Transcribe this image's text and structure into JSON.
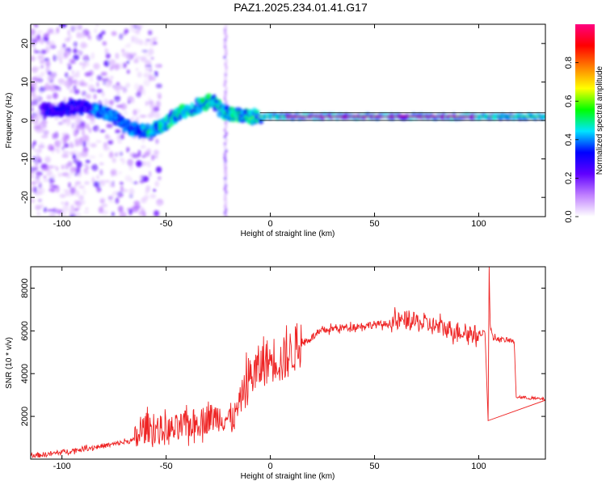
{
  "title": "PAZ1.2025.234.01.41.G17",
  "colors": {
    "snr_line": "#ee2222",
    "axis": "#000000",
    "band": "#000000"
  },
  "chart_data": [
    {
      "type": "heatmap",
      "name": "spectrogram",
      "xlabel": "Height of straight line (km)",
      "ylabel": "Frequency (Hz)",
      "xlim": [
        -115,
        132
      ],
      "ylim": [
        -25,
        25
      ],
      "xticks": [
        -100,
        -50,
        0,
        50,
        100
      ],
      "xtick_labels": [
        "-100",
        "-50",
        "0",
        "50",
        "100"
      ],
      "yticks": [
        -20,
        -10,
        0,
        10,
        20
      ],
      "ytick_labels": [
        "-20",
        "-10",
        "0",
        "10",
        "20"
      ],
      "ridge": {
        "x": [
          -115,
          -100,
          -90,
          -82,
          -75,
          -68,
          -60,
          -52,
          -45,
          -38,
          -32,
          -27,
          -24,
          -20,
          -15,
          -10,
          -5,
          0,
          50,
          100,
          132
        ],
        "freq": [
          2.5,
          3.0,
          3.5,
          2.5,
          0.8,
          -2.0,
          -3.0,
          -1.5,
          1.5,
          3.0,
          4.5,
          5.0,
          3.0,
          1.5,
          1.5,
          1.0,
          1.0,
          1.0,
          1.0,
          1.0,
          1.0
        ]
      },
      "band_lines_hz": [
        0,
        2
      ],
      "band_range_km": [
        -5,
        132
      ],
      "colorbar": {
        "label": "Normalized spectral amplitude",
        "range": [
          0,
          1
        ],
        "ticks": [
          0.0,
          0.2,
          0.4,
          0.6,
          0.8
        ],
        "tick_labels": [
          "0.0",
          "0.2",
          "0.4",
          "0.6",
          "0.8"
        ],
        "stops": [
          "#ffffff",
          "#c080ff",
          "#6000ff",
          "#0000ff",
          "#00e5ff",
          "#00ff00",
          "#ffff00",
          "#ff8000",
          "#ff0000",
          "#ff0080"
        ]
      }
    },
    {
      "type": "line",
      "name": "snr",
      "xlabel": "Height of straight line (km)",
      "ylabel": "SNR (10 * v/v)",
      "xlim": [
        -115,
        132
      ],
      "ylim": [
        0,
        9000
      ],
      "xticks": [
        -100,
        -50,
        0,
        50,
        100
      ],
      "xtick_labels": [
        "-100",
        "-50",
        "0",
        "50",
        "100"
      ],
      "yticks": [
        2000,
        4000,
        6000,
        8000
      ],
      "ytick_labels": [
        "2000",
        "4000",
        "6000",
        "8000"
      ],
      "series": [
        {
          "name": "SNR",
          "x": [
            -115,
            -105,
            -95,
            -85,
            -75,
            -65,
            -60,
            -55,
            -50,
            -45,
            -40,
            -35,
            -30,
            -25,
            -20,
            -17,
            -15,
            -13,
            -10,
            -7,
            -5,
            -3,
            0,
            3,
            5,
            8,
            10,
            15,
            20,
            25,
            30,
            40,
            50,
            55,
            60,
            65,
            70,
            75,
            80,
            85,
            90,
            95,
            100,
            103,
            104.5,
            105,
            105.5,
            107,
            110,
            115,
            117,
            118,
            120,
            125,
            132
          ],
          "y": [
            150,
            250,
            400,
            550,
            700,
            900,
            1500,
            1400,
            1300,
            1400,
            1600,
            1700,
            1900,
            2000,
            1900,
            2000,
            2500,
            3200,
            3800,
            4100,
            4300,
            4500,
            4600,
            4800,
            4500,
            4800,
            5000,
            5400,
            5700,
            6000,
            6100,
            6200,
            6300,
            6300,
            6400,
            6500,
            6400,
            6300,
            6200,
            6100,
            6000,
            5900,
            5800,
            6000,
            1800,
            9000,
            6200,
            5700,
            5600,
            5550,
            5500,
            2900,
            2900,
            2850,
            2800
          ]
        }
      ]
    }
  ]
}
